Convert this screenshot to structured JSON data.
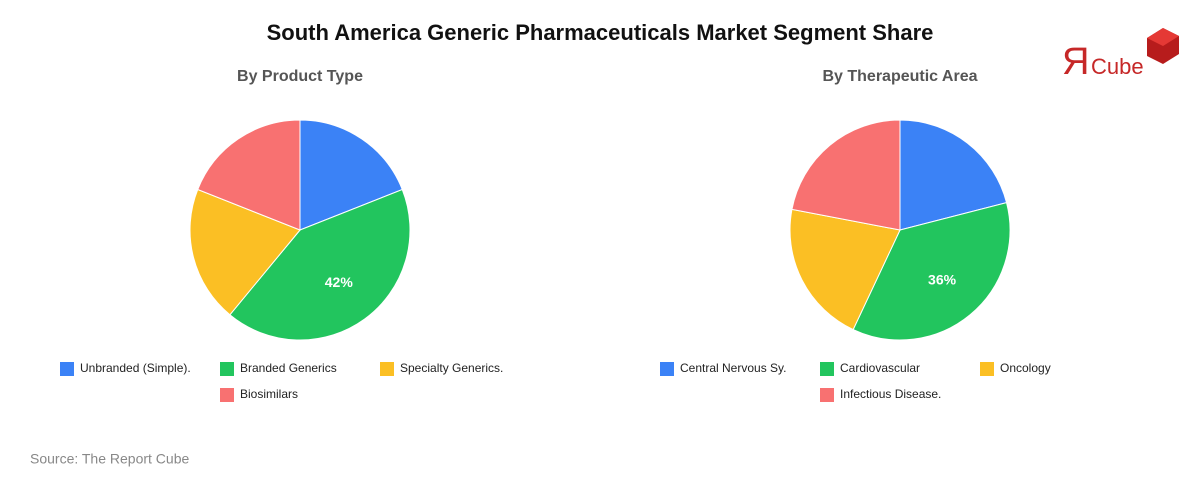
{
  "title": "South America Generic Pharmaceuticals Market Segment Share",
  "source": "Source: The Report Cube",
  "logo": {
    "mark": "Я",
    "text": "Cube"
  },
  "chart_data": [
    {
      "type": "pie",
      "title": "By Product Type",
      "categories": [
        "Unbranded (Simple).",
        "Branded Generics",
        "Specialty Generics.",
        "Biosimilars"
      ],
      "values": [
        19,
        42,
        20,
        19
      ],
      "value_labels": [
        null,
        "42%",
        null,
        null
      ],
      "colors": [
        "#3b82f6",
        "#22c55e",
        "#fbbf24",
        "#f87171"
      ]
    },
    {
      "type": "pie",
      "title": "By Therapeutic Area",
      "categories": [
        "Central Nervous Sy.",
        "Cardiovascular",
        "Oncology",
        "Infectious Disease."
      ],
      "values": [
        21,
        36,
        21,
        22
      ],
      "value_labels": [
        null,
        "36%",
        null,
        null
      ],
      "colors": [
        "#3b82f6",
        "#22c55e",
        "#fbbf24",
        "#f87171"
      ]
    }
  ]
}
